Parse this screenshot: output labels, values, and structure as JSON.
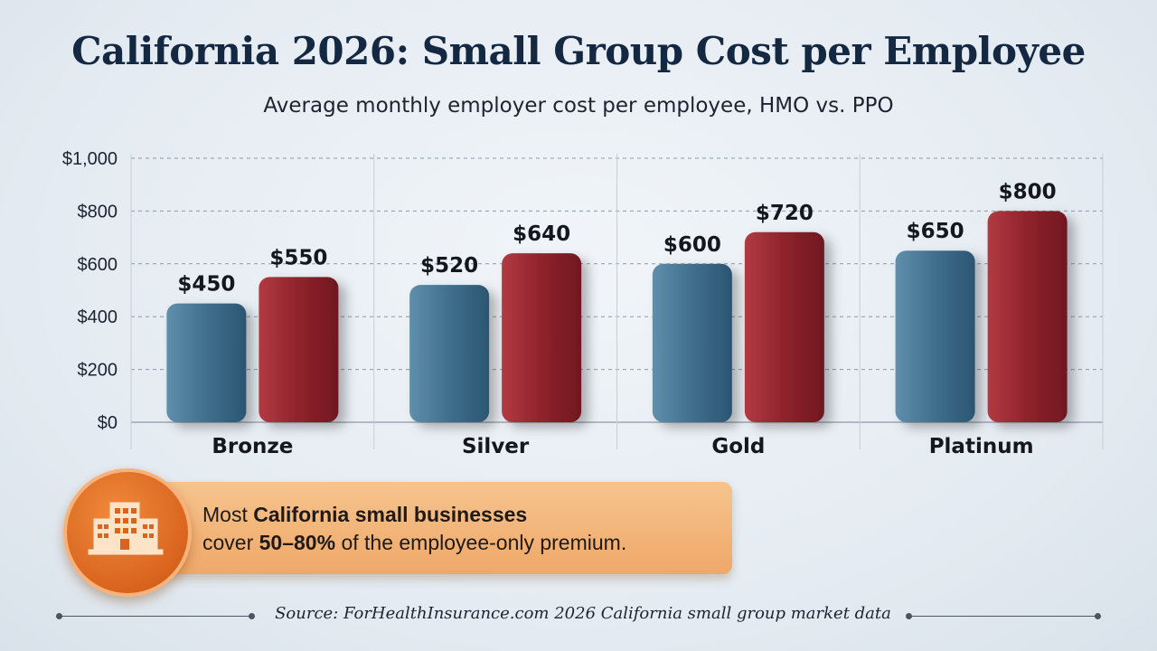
{
  "title": "California 2026: Small Group Cost per Employee",
  "subtitle": "Average monthly employer cost per employee, HMO vs. PPO",
  "chart_data": {
    "type": "bar",
    "categories": [
      "Bronze",
      "Silver",
      "Gold",
      "Platinum"
    ],
    "series": [
      {
        "values": [
          450,
          520,
          600,
          650
        ],
        "color": "#3f6f8c",
        "labels": [
          "$450",
          "$520",
          "$600",
          "$650"
        ]
      },
      {
        "values": [
          550,
          640,
          720,
          800
        ],
        "color": "#8f222b",
        "labels": [
          "$550",
          "$640",
          "$720",
          "$800"
        ]
      }
    ],
    "ylim": [
      0,
      1000
    ],
    "yticks": [
      0,
      200,
      400,
      600,
      800,
      1000
    ],
    "ytick_labels": [
      "$0",
      "$200",
      "$400",
      "$600",
      "$800",
      "$1,000"
    ],
    "grid": true
  },
  "callout": {
    "icon": "office-building-icon",
    "line1_prefix": "Most ",
    "line1_bold": "California small businesses",
    "line2_prefix": "cover ",
    "line2_bold": "50–80%",
    "line2_suffix": " of the employee-only premium."
  },
  "source": "Source: ForHealthInsurance.com 2026 California small group market data"
}
